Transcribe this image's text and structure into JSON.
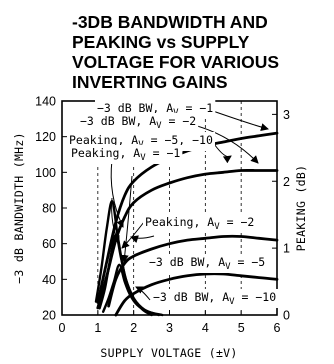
{
  "title_lines": [
    "-3DB BANDWIDTH AND",
    "PEAKING vs SUPPLY",
    "VOLTAGE FOR VARIOUS",
    "INVERTING GAINS"
  ],
  "chart_data": {
    "type": "line",
    "title": "-3DB BANDWIDTH AND PEAKING vs SUPPLY VOLTAGE FOR VARIOUS INVERTING GAINS",
    "xlabel": "SUPPLY VOLTAGE (±V)",
    "ylabel_left": "−3 dB BANDWIDTH (MHz)",
    "ylabel_right": "PEAKING (dB)",
    "xlim": [
      0,
      6
    ],
    "ylim_left": [
      20,
      140
    ],
    "ylim_right": [
      0,
      3.2
    ],
    "x_ticks": [
      "0",
      "1",
      "2",
      "3",
      "4",
      "5",
      "6"
    ],
    "y_left_ticks": [
      "20",
      "40",
      "60",
      "80",
      "100",
      "120",
      "140"
    ],
    "y_right_ticks": [
      "0",
      "1",
      "2",
      "3"
    ],
    "grid": "vertical dashed at x = 1, 2, 3, 4, 5",
    "series": [
      {
        "axis": "left",
        "x": [
          1.0,
          1.25,
          1.5,
          1.75,
          2.0,
          2.5,
          3.0,
          3.5,
          4.0,
          4.5,
          5.0,
          5.5,
          6.0
        ],
        "y": [
          27,
          50,
          72,
          87,
          95,
          103,
          108,
          112,
          115,
          117,
          119,
          120.5,
          122
        ]
      },
      {
        "axis": "left",
        "x": [
          1.0,
          1.25,
          1.5,
          1.75,
          2.0,
          2.5,
          3.0,
          3.5,
          4.0,
          4.5,
          5.0,
          5.5,
          6.0
        ],
        "y": [
          24,
          42,
          62,
          75,
          83,
          90,
          94,
          97,
          99,
          100,
          101,
          101,
          101
        ]
      },
      {
        "axis": "left",
        "x": [
          1.3,
          1.5,
          1.75,
          2.0,
          2.5,
          3.0,
          3.5,
          4.0,
          4.5,
          5.0,
          5.5,
          6.0
        ],
        "y": [
          25,
          40,
          49,
          53,
          57,
          60,
          62,
          63,
          64,
          64,
          63,
          62
        ]
      },
      {
        "axis": "left",
        "x": [
          1.5,
          1.75,
          2.0,
          2.5,
          3.0,
          3.5,
          4.0,
          4.5,
          5.0,
          5.5,
          6.0
        ],
        "y": [
          20,
          28,
          32,
          37,
          40,
          42,
          43,
          43,
          42,
          41,
          40
        ]
      },
      {
        "axis": "right",
        "x": [
          0.95,
          1.1,
          1.25,
          1.4,
          1.55,
          1.75,
          2.0,
          2.25,
          2.5
        ],
        "y": [
          0.2,
          0.7,
          1.3,
          1.7,
          1.2,
          0.6,
          0.25,
          0.08,
          0.0
        ]
      },
      {
        "axis": "right",
        "x": [
          1.05,
          1.2,
          1.35,
          1.5,
          1.65,
          1.8,
          2.0,
          2.3,
          2.7
        ],
        "y": [
          0.1,
          0.4,
          0.85,
          1.2,
          0.85,
          0.5,
          0.25,
          0.08,
          0.0
        ]
      },
      {
        "axis": "right",
        "x": [
          1.15,
          1.3,
          1.45,
          1.6,
          1.75,
          1.9,
          2.1,
          2.4,
          2.8
        ],
        "y": [
          0.05,
          0.25,
          0.5,
          0.75,
          0.5,
          0.3,
          0.15,
          0.05,
          0.0
        ]
      }
    ],
    "annotations": [
      {
        "text": "−3 dB BW, A",
        "sub": "V",
        "eq": " = −1"
      },
      {
        "text": "−3 dB BW, A",
        "sub": "V",
        "eq": " = −2"
      },
      {
        "text": "Peaking, A",
        "sub": "V",
        "eq": " = −5, −10"
      },
      {
        "text": "Peaking, A",
        "sub": "V",
        "eq": " = −1"
      },
      {
        "text": "Peaking, A",
        "sub": "V",
        "eq": " = −2"
      },
      {
        "text": "−3 dB BW, A",
        "sub": "V",
        "eq": " = −5"
      },
      {
        "text": "−3 dB BW, A",
        "sub": "V",
        "eq": " = −10"
      }
    ]
  }
}
